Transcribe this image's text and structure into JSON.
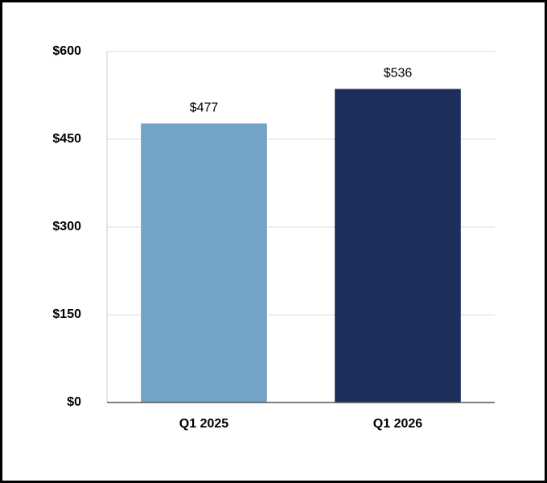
{
  "chart_data": {
    "type": "bar",
    "categories": [
      "Q1 2025",
      "Q1 2026"
    ],
    "values": [
      477,
      536
    ],
    "value_labels": [
      "$477",
      "$536"
    ],
    "colors": [
      "#74a4c5",
      "#1d2d5c"
    ],
    "ylim": [
      0,
      600
    ],
    "yticks": [
      {
        "value": 0,
        "label": "$0"
      },
      {
        "value": 150,
        "label": "$150"
      },
      {
        "value": 300,
        "label": "$300"
      },
      {
        "value": 450,
        "label": "$450"
      },
      {
        "value": 600,
        "label": "$600"
      }
    ],
    "grid": true
  }
}
